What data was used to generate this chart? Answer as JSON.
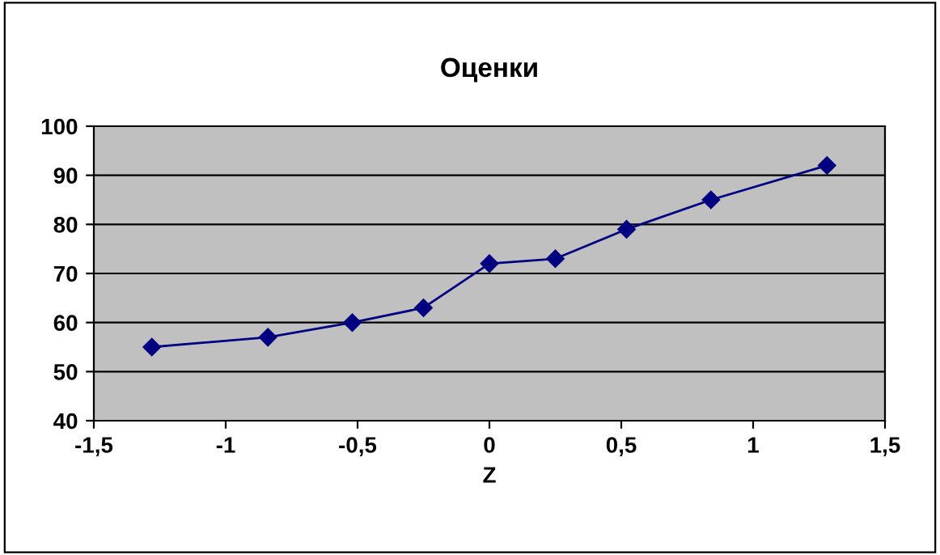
{
  "chart_data": {
    "type": "line",
    "title": "Оценки",
    "xlabel": "Z",
    "x": [
      -1.28,
      -0.84,
      -0.52,
      -0.25,
      0,
      0.25,
      0.52,
      0.84,
      1.28
    ],
    "series": [
      {
        "color": "#000080",
        "values": [
          55,
          57,
          60,
          63,
          72,
          73,
          79,
          85,
          92
        ]
      }
    ],
    "xlim": [
      -1.5,
      1.5
    ],
    "xticks": [
      {
        "value": -1.5,
        "label": "-1,5"
      },
      {
        "value": -1,
        "label": "-1"
      },
      {
        "value": -0.5,
        "label": "-0,5"
      },
      0,
      {
        "value": 0.5,
        "label": "0,5"
      },
      1,
      {
        "value": 1.5,
        "label": "1,5"
      }
    ],
    "ylim": [
      40,
      100
    ],
    "yticks": [
      40,
      50,
      60,
      70,
      80,
      90,
      100
    ],
    "grid": "y",
    "legend": false,
    "marker": "diamond",
    "line_style": "solid"
  }
}
